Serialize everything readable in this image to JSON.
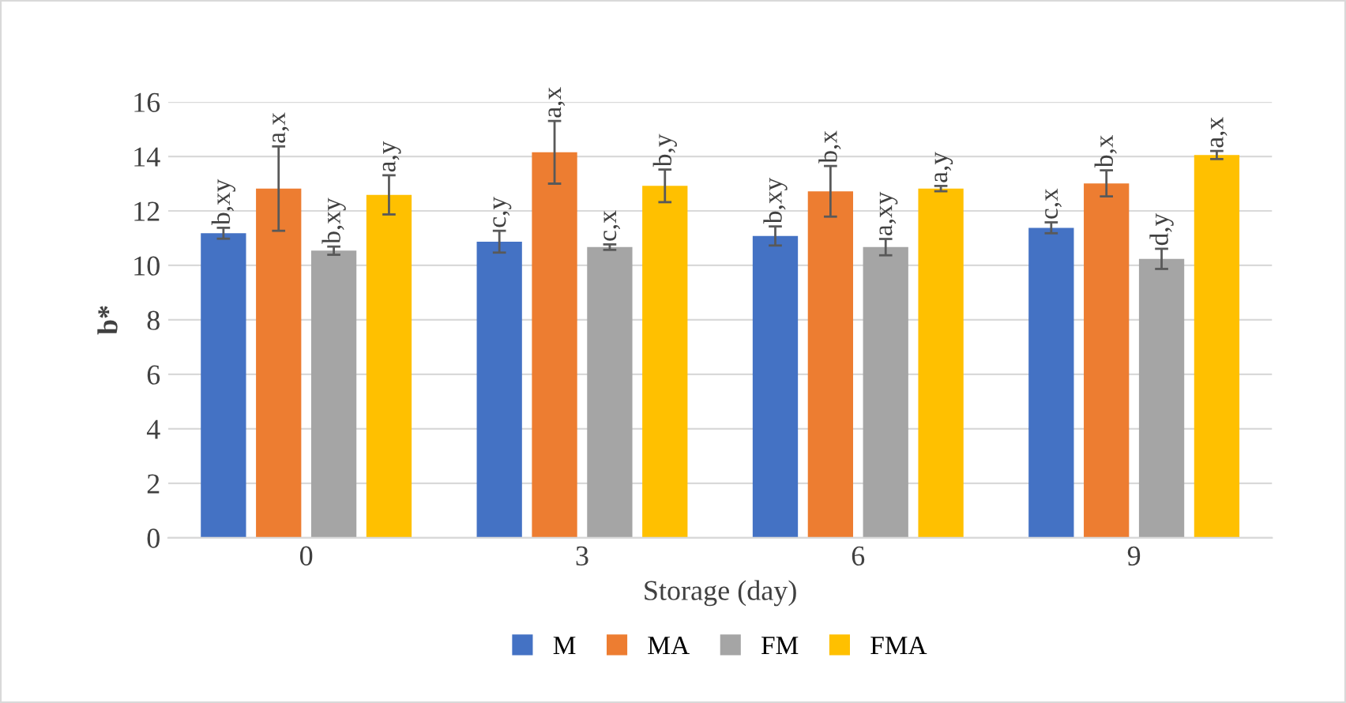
{
  "chart_data": {
    "type": "bar",
    "xlabel": "Storage (day)",
    "ylabel": "b*",
    "categories": [
      "0",
      "3",
      "6",
      "9"
    ],
    "series": [
      {
        "name": "M",
        "color": "#4472c4",
        "values": [
          11.18,
          10.87,
          11.08,
          11.38
        ],
        "errors": [
          0.2,
          0.4,
          0.35,
          0.2
        ],
        "value_labels": [
          "b,xy",
          "c,y",
          "b,xy",
          "c,x"
        ]
      },
      {
        "name": "MA",
        "color": "#ed7d31",
        "values": [
          12.82,
          14.15,
          12.72,
          13.01
        ],
        "errors": [
          1.55,
          1.15,
          0.93,
          0.48
        ],
        "value_labels": [
          "a,x",
          "a,x",
          "b,x",
          "b,x"
        ]
      },
      {
        "name": "FM",
        "color": "#a5a5a5",
        "values": [
          10.54,
          10.67,
          10.67,
          10.24
        ],
        "errors": [
          0.15,
          0.1,
          0.3,
          0.37
        ],
        "value_labels": [
          "b,xy",
          "c,x",
          "a,xy",
          "d,y"
        ]
      },
      {
        "name": "FMA",
        "color": "#ffc000",
        "values": [
          12.59,
          12.92,
          12.82,
          14.05
        ],
        "errors": [
          0.72,
          0.6,
          0.1,
          0.15
        ],
        "value_labels": [
          "a,y",
          "b,y",
          "a,y",
          "a,x"
        ]
      }
    ],
    "ylim": [
      0,
      16
    ],
    "yticks": [
      0,
      2,
      4,
      6,
      8,
      10,
      12,
      14,
      16
    ],
    "grid": "y",
    "legend": "bottom"
  }
}
